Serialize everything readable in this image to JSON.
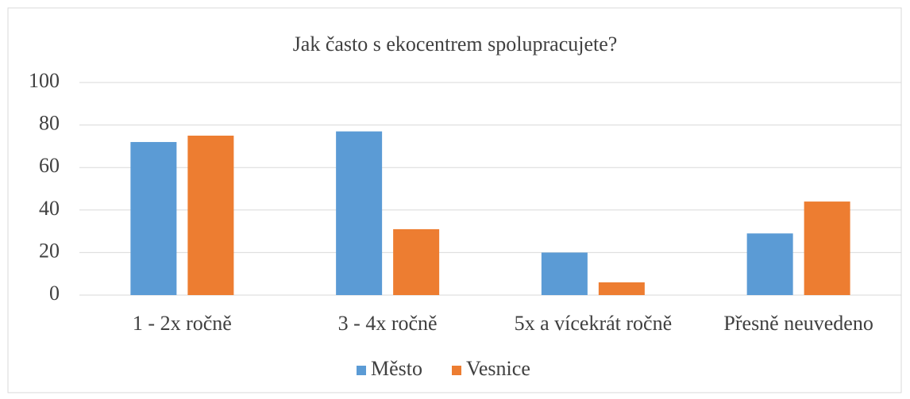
{
  "chart_data": {
    "type": "bar",
    "title": "Jak často s ekocentrem spolupracujete?",
    "categories": [
      "1 - 2x ročně",
      "3 - 4x ročně",
      "5x a vícekrát ročně",
      "Přesně neuvedeno"
    ],
    "series": [
      {
        "name": "Město",
        "color": "#5b9bd5",
        "values": [
          72,
          77,
          20,
          29
        ]
      },
      {
        "name": "Vesnice",
        "color": "#ed7d31",
        "values": [
          75,
          31,
          6,
          44
        ]
      }
    ],
    "ylim": [
      0,
      100
    ],
    "yticks": [
      0,
      20,
      40,
      60,
      80,
      100
    ],
    "grid": true,
    "legend": "bottom"
  }
}
